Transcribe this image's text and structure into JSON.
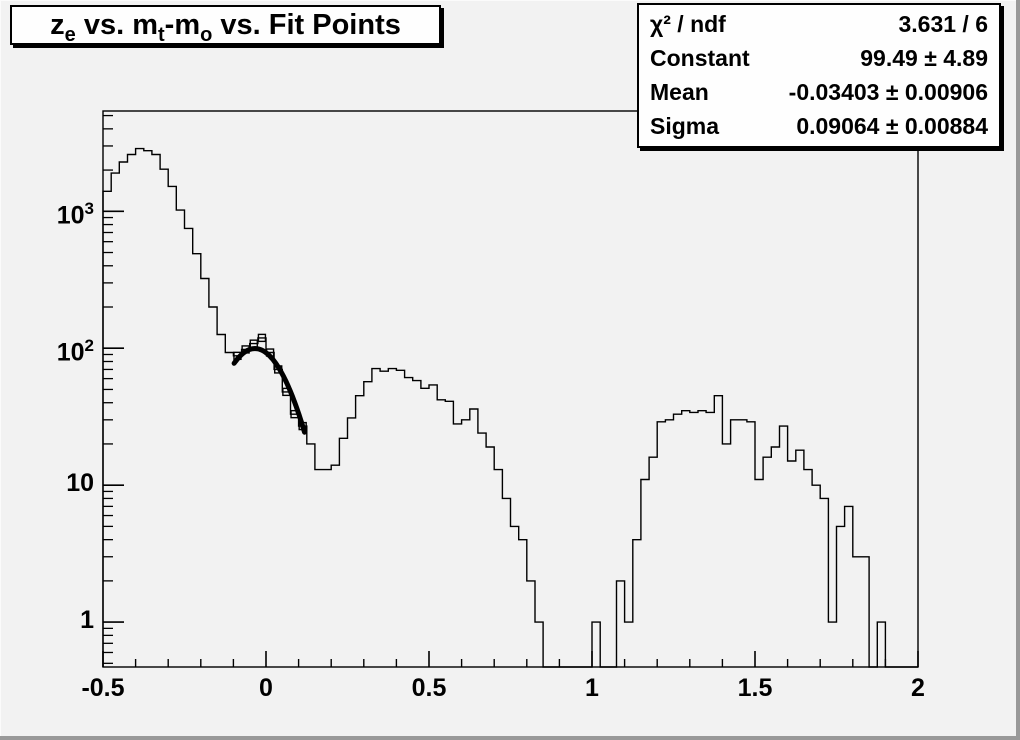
{
  "window": {
    "background": "#f2f2f2",
    "pave_background": "#fefefe",
    "line_color": "#000000",
    "bevel_color": "#999999"
  },
  "title_box": {
    "plain_text": "z_e vs. m_t-m_o vs. Fit Points",
    "segments": [
      {
        "type": "text",
        "text": "z"
      },
      {
        "type": "sub",
        "text": "e"
      },
      {
        "type": "text",
        "text": " vs. m"
      },
      {
        "type": "sub",
        "text": "t"
      },
      {
        "type": "text",
        "text": "-m"
      },
      {
        "type": "sub",
        "text": "o"
      },
      {
        "type": "text",
        "text": " vs. Fit Points"
      }
    ]
  },
  "stats_box": {
    "rows": [
      {
        "label": "χ² / ndf",
        "value": "3.631 / 6"
      },
      {
        "label": "Constant",
        "value": "99.49 ± 4.89"
      },
      {
        "label": "Mean",
        "value": "-0.03403 ± 0.00906"
      },
      {
        "label": "Sigma",
        "value": "0.09064 ± 0.00884"
      }
    ]
  },
  "chart_data": {
    "type": "bar",
    "subtype": "step-histogram-log-y",
    "title": "z_e vs. m_t-m_o vs. Fit Points",
    "xlabel": "",
    "ylabel": "",
    "xlim": [
      -0.5,
      2.0
    ],
    "ylim": [
      0.47,
      5400
    ],
    "ylog": true,
    "grid": false,
    "bin_start": -0.5,
    "bin_width": 0.025,
    "values": [
      1400,
      1900,
      2290,
      2600,
      2870,
      2770,
      2600,
      2030,
      1520,
      1020,
      750,
      490,
      323,
      200,
      126,
      93,
      88,
      98,
      108,
      119,
      93,
      70,
      48,
      33,
      27,
      20,
      13,
      13,
      14,
      22,
      31,
      45,
      57,
      71,
      68,
      71,
      69,
      61,
      58,
      51,
      54,
      42,
      41,
      28,
      30,
      36,
      24,
      19,
      13,
      8,
      5,
      4,
      2,
      1,
      0,
      0,
      0,
      0,
      0,
      0,
      1,
      0,
      0,
      2,
      1,
      4,
      11,
      16,
      29,
      30,
      33,
      35,
      34,
      35,
      34,
      45,
      20,
      30,
      30,
      29,
      11,
      16,
      19,
      27,
      15,
      18,
      13,
      10,
      8,
      1,
      5,
      7,
      3,
      3,
      0,
      1,
      0,
      0,
      0,
      0
    ],
    "x_major_ticks": [
      {
        "v": -0.5,
        "label": "-0.5"
      },
      {
        "v": 0,
        "label": "0"
      },
      {
        "v": 0.5,
        "label": "0.5"
      },
      {
        "v": 1,
        "label": "1"
      },
      {
        "v": 1.5,
        "label": "1.5"
      },
      {
        "v": 2,
        "label": "2"
      }
    ],
    "x_minor_step": 0.1,
    "y_major_ticks": [
      {
        "v": 1,
        "label": "1",
        "sup": ""
      },
      {
        "v": 10,
        "label": "10",
        "sup": ""
      },
      {
        "v": 100,
        "label": "10",
        "sup": "2"
      },
      {
        "v": 1000,
        "label": "10",
        "sup": "3"
      }
    ],
    "fit": {
      "shape": "gaussian",
      "constant": 99.49,
      "mean": -0.03403,
      "sigma": 0.09064,
      "range": [
        -0.098,
        0.118
      ],
      "chi2": 3.631,
      "ndf": 6
    },
    "fit_points": {
      "x": [
        -0.0875,
        -0.0625,
        -0.0375,
        -0.0125,
        0.0125,
        0.0375,
        0.0625,
        0.0875,
        0.1125
      ],
      "y": [
        88,
        98,
        108,
        119,
        93,
        70,
        48,
        33,
        27
      ]
    }
  }
}
